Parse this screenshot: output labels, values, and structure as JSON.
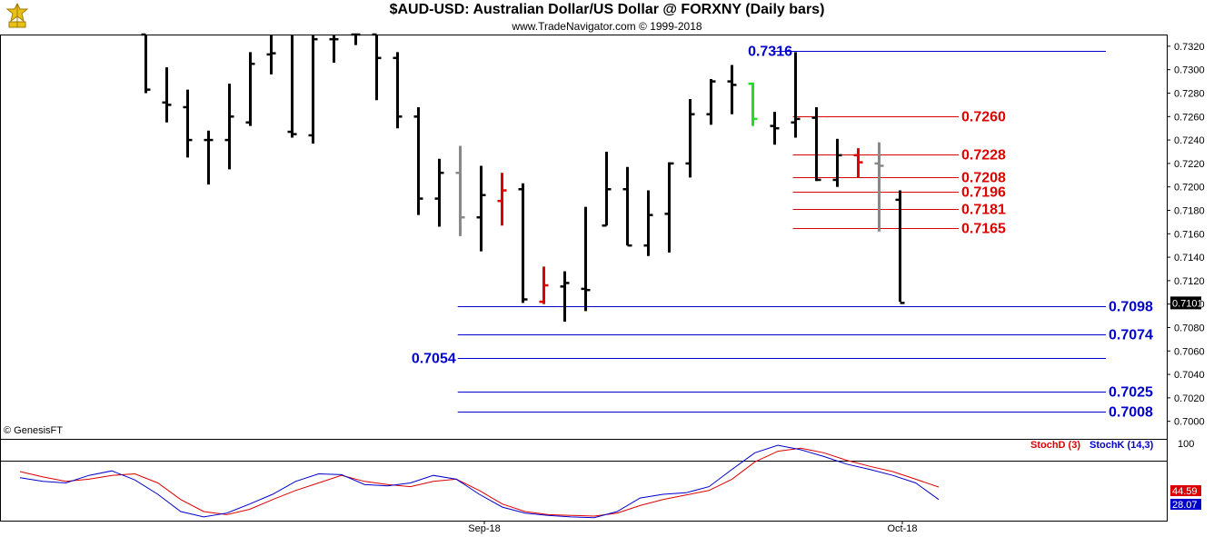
{
  "header": {
    "title": "$AUD-USD:  Australian Dollar/US Dollar @ FORXNY  (Daily bars)",
    "subtitle": "www.TradeNavigator.com © 1999-2018"
  },
  "footer": {
    "copyright": "© GenesisFT"
  },
  "chart_data": [
    {
      "type": "ohlc",
      "title": "$AUD-USD:  Australian Dollar/US Dollar @ FORXNY  (Daily bars)",
      "ylim": [
        0.6985,
        0.733
      ],
      "y_ticks": [
        "0.7000",
        "0.7020",
        "0.7040",
        "0.7060",
        "0.7080",
        "0.7100",
        "0.7120",
        "0.7140",
        "0.7160",
        "0.7180",
        "0.7200",
        "0.7220",
        "0.7240",
        "0.7260",
        "0.7280",
        "0.7300",
        "0.7320"
      ],
      "x_ticks": [
        "Sep-18",
        "Oct-18"
      ],
      "last_price_label": "0.7101",
      "grid": false,
      "bar_colors": {
        "default": "#000000",
        "down_alert": "#e00000",
        "neutral": "#888888",
        "up_alert": "#22dd22"
      },
      "bars": [
        {
          "o": 0.733,
          "h": 0.733,
          "l": 0.728,
          "c": 0.7283,
          "color": "default"
        },
        {
          "o": 0.7272,
          "h": 0.7302,
          "l": 0.7255,
          "c": 0.727,
          "color": "default"
        },
        {
          "o": 0.7268,
          "h": 0.7283,
          "l": 0.7225,
          "c": 0.724,
          "color": "default"
        },
        {
          "o": 0.724,
          "h": 0.7248,
          "l": 0.7202,
          "c": 0.724,
          "color": "default"
        },
        {
          "o": 0.724,
          "h": 0.7288,
          "l": 0.7215,
          "c": 0.726,
          "color": "default"
        },
        {
          "o": 0.7255,
          "h": 0.7315,
          "l": 0.7252,
          "c": 0.7305,
          "color": "default"
        },
        {
          "o": 0.7313,
          "h": 0.733,
          "l": 0.7296,
          "c": 0.7314,
          "color": "default"
        },
        {
          "o": 0.7247,
          "h": 0.733,
          "l": 0.7242,
          "c": 0.7245,
          "color": "default"
        },
        {
          "o": 0.7244,
          "h": 0.733,
          "l": 0.7237,
          "c": 0.7326,
          "color": "default"
        },
        {
          "o": 0.7326,
          "h": 0.733,
          "l": 0.7306,
          "c": 0.7326,
          "color": "default"
        },
        {
          "o": 0.733,
          "h": 0.733,
          "l": 0.7321,
          "c": 0.733,
          "color": "default"
        },
        {
          "o": 0.733,
          "h": 0.733,
          "l": 0.7274,
          "c": 0.731,
          "color": "default"
        },
        {
          "o": 0.731,
          "h": 0.7315,
          "l": 0.725,
          "c": 0.726,
          "color": "default"
        },
        {
          "o": 0.726,
          "h": 0.7268,
          "l": 0.7176,
          "c": 0.719,
          "color": "default"
        },
        {
          "o": 0.719,
          "h": 0.7224,
          "l": 0.7166,
          "c": 0.7212,
          "color": "default"
        },
        {
          "o": 0.7212,
          "h": 0.7235,
          "l": 0.7158,
          "c": 0.7174,
          "color": "neutral"
        },
        {
          "o": 0.7174,
          "h": 0.7218,
          "l": 0.7145,
          "c": 0.7193,
          "color": "default"
        },
        {
          "o": 0.7188,
          "h": 0.7212,
          "l": 0.7167,
          "c": 0.7197,
          "color": "down_alert"
        },
        {
          "o": 0.7198,
          "h": 0.7203,
          "l": 0.7101,
          "c": 0.7104,
          "color": "default"
        },
        {
          "o": 0.7102,
          "h": 0.7132,
          "l": 0.71,
          "c": 0.7116,
          "color": "down_alert"
        },
        {
          "o": 0.7115,
          "h": 0.7128,
          "l": 0.7085,
          "c": 0.7118,
          "color": "default"
        },
        {
          "o": 0.7113,
          "h": 0.7183,
          "l": 0.7094,
          "c": 0.7112,
          "color": "default"
        },
        {
          "o": 0.7167,
          "h": 0.723,
          "l": 0.7167,
          "c": 0.7198,
          "color": "default"
        },
        {
          "o": 0.7198,
          "h": 0.7217,
          "l": 0.715,
          "c": 0.715,
          "color": "default"
        },
        {
          "o": 0.715,
          "h": 0.7197,
          "l": 0.7141,
          "c": 0.7176,
          "color": "default"
        },
        {
          "o": 0.7177,
          "h": 0.7221,
          "l": 0.7144,
          "c": 0.722,
          "color": "default"
        },
        {
          "o": 0.722,
          "h": 0.7275,
          "l": 0.7208,
          "c": 0.7262,
          "color": "default"
        },
        {
          "o": 0.7262,
          "h": 0.7292,
          "l": 0.7253,
          "c": 0.729,
          "color": "default"
        },
        {
          "o": 0.729,
          "h": 0.7304,
          "l": 0.7262,
          "c": 0.7287,
          "color": "default"
        },
        {
          "o": 0.7288,
          "h": 0.7289,
          "l": 0.7252,
          "c": 0.7258,
          "color": "up_alert"
        },
        {
          "o": 0.7252,
          "h": 0.7264,
          "l": 0.7236,
          "c": 0.725,
          "color": "default"
        },
        {
          "o": 0.7255,
          "h": 0.7315,
          "l": 0.7242,
          "c": 0.7258,
          "color": "default"
        },
        {
          "o": 0.7259,
          "h": 0.7268,
          "l": 0.7205,
          "c": 0.7206,
          "color": "default"
        },
        {
          "o": 0.7206,
          "h": 0.7241,
          "l": 0.72,
          "c": 0.7227,
          "color": "default"
        },
        {
          "o": 0.7227,
          "h": 0.7233,
          "l": 0.7208,
          "c": 0.7221,
          "color": "down_alert"
        },
        {
          "o": 0.722,
          "h": 0.7238,
          "l": 0.7162,
          "c": 0.7218,
          "color": "neutral"
        },
        {
          "o": 0.7189,
          "h": 0.7197,
          "l": 0.7102,
          "c": 0.7101,
          "color": "default"
        }
      ],
      "annotations": [
        {
          "label": "0.7316",
          "value": 0.7316,
          "color": "#0000cc",
          "line_from_bar": 30,
          "label_side": "left"
        },
        {
          "label": "0.7260",
          "value": 0.726,
          "color": "#dd0000",
          "line_from_bar": 31,
          "label_side": "right"
        },
        {
          "label": "0.7228",
          "value": 0.7228,
          "color": "#dd0000",
          "line_from_bar": 31,
          "label_side": "right"
        },
        {
          "label": "0.7208",
          "value": 0.7208,
          "color": "#dd0000",
          "line_from_bar": 31,
          "label_side": "right"
        },
        {
          "label": "0.7196",
          "value": 0.7196,
          "color": "#dd0000",
          "line_from_bar": 31,
          "label_side": "right"
        },
        {
          "label": "0.7181",
          "value": 0.7181,
          "color": "#dd0000",
          "line_from_bar": 31,
          "label_side": "right"
        },
        {
          "label": "0.7165",
          "value": 0.7165,
          "color": "#dd0000",
          "line_from_bar": 31,
          "label_side": "right"
        },
        {
          "label": "0.7098",
          "value": 0.7098,
          "color": "#0000cc",
          "line_from_bar": 15,
          "label_side": "right"
        },
        {
          "label": "0.7074",
          "value": 0.7074,
          "color": "#0000cc",
          "line_from_bar": 15,
          "label_side": "right"
        },
        {
          "label": "0.7054",
          "value": 0.7054,
          "color": "#0000cc",
          "line_from_bar": 15,
          "label_side": "left"
        },
        {
          "label": "0.7025",
          "value": 0.7025,
          "color": "#0000cc",
          "line_from_bar": 15,
          "label_side": "right"
        },
        {
          "label": "0.7008",
          "value": 0.7008,
          "color": "#0000cc",
          "line_from_bar": 15,
          "label_side": "right"
        }
      ]
    },
    {
      "type": "line",
      "title": "",
      "ylim": [
        0,
        100
      ],
      "y_ticks": [
        "100"
      ],
      "legend": [
        "StochD (3)",
        "StochK (14,3)"
      ],
      "legend_position": "top-right",
      "series": [
        {
          "name": "StochD (3)",
          "color": "#dd0000",
          "last_label": "44.59",
          "values": [
            65,
            58,
            52,
            55,
            60,
            62,
            50,
            28,
            12,
            8,
            15,
            28,
            40,
            50,
            60,
            52,
            48,
            45,
            52,
            55,
            40,
            22,
            12,
            8,
            7,
            6,
            10,
            20,
            28,
            34,
            40,
            55,
            78,
            92,
            96,
            90,
            80,
            72,
            65,
            55,
            44.59
          ]
        },
        {
          "name": "StochK (14,3)",
          "color": "#0000cc",
          "last_label": "28.07",
          "values": [
            57,
            52,
            50,
            60,
            66,
            54,
            35,
            12,
            5,
            10,
            22,
            35,
            52,
            62,
            61,
            48,
            46,
            50,
            60,
            55,
            35,
            18,
            10,
            7,
            5,
            4,
            12,
            30,
            35,
            37,
            45,
            68,
            90,
            100,
            94,
            85,
            75,
            68,
            60,
            50,
            28.07
          ]
        }
      ]
    }
  ]
}
